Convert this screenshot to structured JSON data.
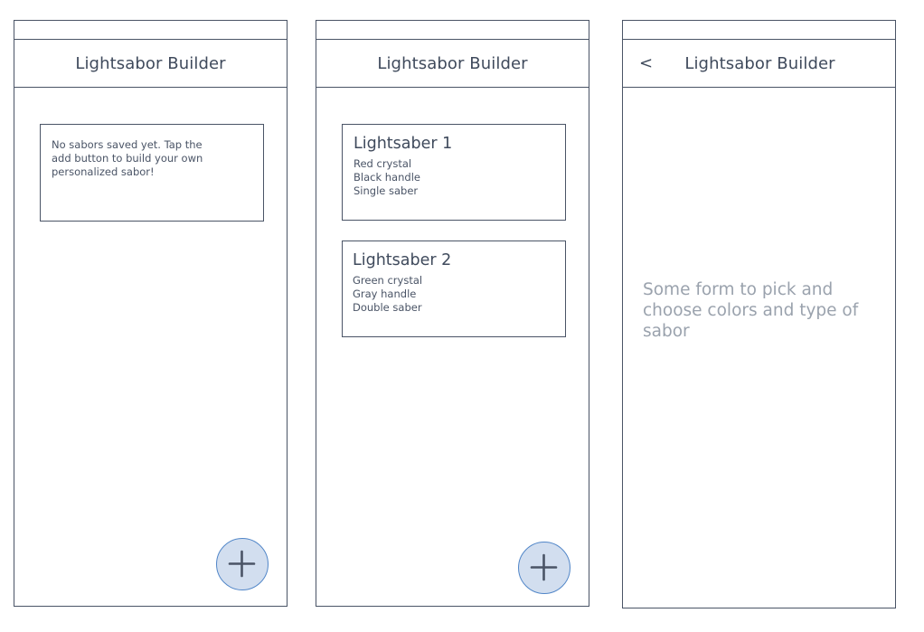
{
  "screens": [
    {
      "id": "empty-list",
      "header": {
        "title": "Lightsabor Builder"
      },
      "empty_message": "No sabors saved yet. Tap the add button to build your own personalized sabor!",
      "fab_icon": "plus-icon"
    },
    {
      "id": "saber-list",
      "header": {
        "title": "Lightsabor Builder"
      },
      "sabers": [
        {
          "name": "Lightsaber 1",
          "details": [
            "Red crystal",
            "Black handle",
            "Single saber"
          ]
        },
        {
          "name": "Lightsaber 2",
          "details": [
            "Green crystal",
            "Gray handle",
            "Double saber"
          ]
        }
      ],
      "fab_icon": "plus-icon"
    },
    {
      "id": "builder-form",
      "header": {
        "back_label": "<",
        "title": "Lightsabor Builder"
      },
      "form_placeholder": "Some form to pick and choose colors and type of sabor"
    }
  ],
  "colors": {
    "outline": "#4a5466",
    "fab_fill": "#d2deef",
    "fab_border": "#5186c8",
    "placeholder_text": "#9aa2ad"
  }
}
